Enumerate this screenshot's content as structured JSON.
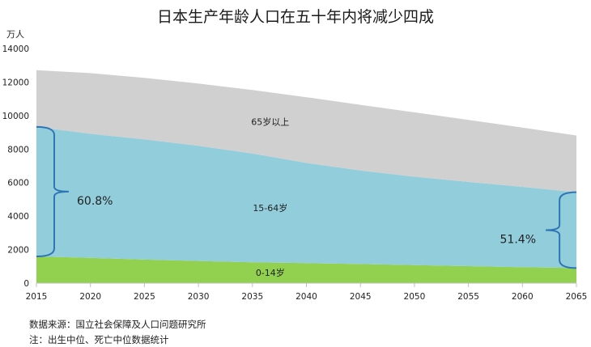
{
  "title": "日本生产年龄人口在五十年内将减少四成",
  "chart_data": {
    "type": "area",
    "stacked": true,
    "title": "日本生产年龄人口在五十年内将减少四成",
    "ylabel": "万人",
    "xlabel": "",
    "x": [
      2015,
      2020,
      2025,
      2030,
      2035,
      2040,
      2045,
      2050,
      2055,
      2060,
      2065
    ],
    "ylim": [
      0,
      14000
    ],
    "xlim": [
      2015,
      2065
    ],
    "yticks": [
      "0",
      "2000",
      "4000",
      "6000",
      "8000",
      "10000",
      "12000",
      "14000"
    ],
    "xticks": [
      "2015",
      "2020",
      "2025",
      "2030",
      "2035",
      "2040",
      "2045",
      "2050",
      "2055",
      "2060",
      "2065"
    ],
    "grid": false,
    "series": [
      {
        "name": "0-14岁",
        "color": "#92d050",
        "values": [
          1595,
          1507,
          1407,
          1321,
          1246,
          1194,
          1138,
          1077,
          1012,
          951,
          898
        ]
      },
      {
        "name": "15-64岁",
        "color": "#92cddc",
        "values": [
          7728,
          7406,
          7170,
          6875,
          6494,
          5978,
          5584,
          5275,
          5028,
          4793,
          4529
        ]
      },
      {
        "name": "65岁以上",
        "color": "#d0d0d0",
        "values": [
          3387,
          3619,
          3677,
          3716,
          3782,
          3921,
          3919,
          3841,
          3704,
          3540,
          3381
        ]
      }
    ],
    "annotations": [
      {
        "text": "60.8%",
        "year": 2015
      },
      {
        "text": "51.4%",
        "year": 2065
      }
    ]
  },
  "source_note": "数据来源：国立社会保障及人口问题研究所",
  "footnote": "注：出生中位、死亡中位数据统计"
}
